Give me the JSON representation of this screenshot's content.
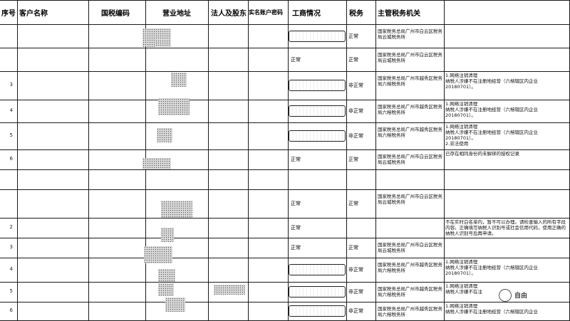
{
  "headers": {
    "seq": "序号",
    "name": "客户名称",
    "tax_id": "国税编码",
    "address": "营业地址",
    "legal": "法人及股东",
    "account": "实名账户密码",
    "status": "工商情况",
    "tax": "税务",
    "authority": "主管税务机关"
  },
  "rows": [
    {
      "seq": "",
      "status": "",
      "tax": "正常",
      "authority": "国家税务总局广州市白云区税务局云城税务所",
      "note": ""
    },
    {
      "seq": "",
      "status": "正常",
      "tax": "正常",
      "authority": "国家税务总局广州市白云区税务局云城税务所",
      "note": ""
    },
    {
      "seq": "3",
      "status": "",
      "tax": "非正常",
      "authority": "国家税务总局广州市越秀区税务局六榕税务所",
      "note": "1.网络注销清理\n纳税人涉嫌不在注册地经营（六榕辖区内企业20180701）。"
    },
    {
      "seq": "4",
      "status": "",
      "tax": "非正常",
      "authority": "国家税务总局广州市越秀区税务局六榕税务所",
      "note": "1.网络注销清理\n纳税人涉嫌不在注册地经营（六榕辖区内企业20180701）。"
    },
    {
      "seq": "5",
      "status": "",
      "tax": "非正常",
      "authority": "国家税务总局广州市越秀区税务局六榕税务所",
      "note": "1.网络注销清理\n纳税人涉嫌不在注册地经营（六榕辖区内企业20180701）。\n2.非法使用"
    },
    {
      "seq": "6",
      "status": "正常",
      "tax": "正常",
      "authority": "国家税务总局广州市白云区税务局云城税务所",
      "note": "已存在相同身份的未解绑的授权记录"
    },
    {
      "seq": "",
      "status": "",
      "tax": "",
      "authority": "",
      "note": ""
    },
    {
      "seq": "",
      "status": "正常",
      "tax": "正常",
      "authority": "国家税务总局广州市白云区税务局云城税务所",
      "note": ""
    },
    {
      "seq": "2",
      "status": "正常",
      "tax": "",
      "authority": "",
      "note": "不在实时白名单内，暂不可以办理。请检查输入的所有字段内容。正确填写纳税人识别号或社会信用代码，使用正确的纳税人识别号后再申请。"
    },
    {
      "seq": "3",
      "status": "正常",
      "tax": "正常",
      "authority": "国家税务总局广州市白云区税务局云城税务所",
      "note": ""
    },
    {
      "seq": "4",
      "status": "",
      "tax": "非正常",
      "authority": "国家税务总局广州市越秀区税务局六榕税务所",
      "note": "1.网络注销清理\n纳税人涉嫌不在注册地经营（六榕辖区内企业20180701）。"
    },
    {
      "seq": "5",
      "status": "",
      "tax": "非正常",
      "authority": "国家税务总局广州市越秀区税务局六榕税务所",
      "note": "1.网络注销清理\n纳税人涉嫌不在注"
    },
    {
      "seq": "6",
      "status": "",
      "tax": "非正常",
      "authority": "国家税务总局广州市越秀区税务局六榕税务所",
      "note": "1.网络注销清理\n纳税人涉嫌不在注册地经营（六榕辖区内企业"
    }
  ],
  "watermark": "自由"
}
